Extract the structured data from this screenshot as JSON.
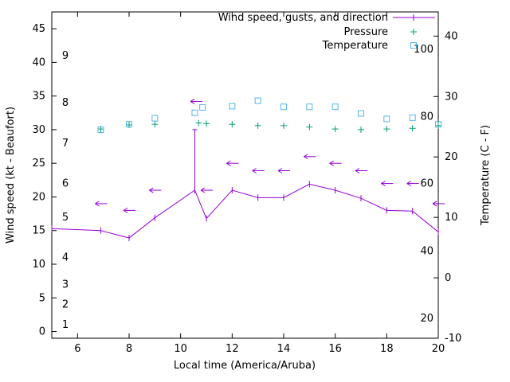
{
  "chart_data": {
    "type": "line",
    "title": "",
    "xlabel": "Local time (America/Aruba)",
    "ylabel": "Wind speed (kt - Beaufort)",
    "y2label": "Temperature (C - F)",
    "xlim": [
      5,
      20
    ],
    "ylim": [
      -1,
      47.5
    ],
    "y2lim": [
      -10,
      44
    ],
    "xticks": [
      6,
      8,
      10,
      12,
      14,
      16,
      18,
      20
    ],
    "yticks": [
      0,
      5,
      10,
      15,
      20,
      25,
      30,
      35,
      40,
      45
    ],
    "y2ticks": [
      -10,
      0,
      10,
      20,
      30,
      40
    ],
    "beaufort_labels": [
      {
        "label": "1",
        "kt": 1
      },
      {
        "label": "2",
        "kt": 4
      },
      {
        "label": "3",
        "kt": 7
      },
      {
        "label": "4",
        "kt": 11
      },
      {
        "label": "5",
        "kt": 17
      },
      {
        "label": "6",
        "kt": 22
      },
      {
        "label": "7",
        "kt": 28
      },
      {
        "label": "8",
        "kt": 34
      },
      {
        "label": "9",
        "kt": 41
      }
    ],
    "fahrenheit_labels": [
      {
        "label": "20",
        "c": -6.7
      },
      {
        "label": "40",
        "c": 4.4
      },
      {
        "label": "60",
        "c": 15.6
      },
      {
        "label": "80",
        "c": 26.7
      },
      {
        "label": "100",
        "c": 37.8
      }
    ],
    "legend": [
      {
        "label": "Wind speed, gusts, and direction",
        "style": "line-vbar",
        "color": "#9400d3"
      },
      {
        "label": "Pressure",
        "style": "plus",
        "color": "#009e73"
      },
      {
        "label": "Temperature",
        "style": "square",
        "color": "#56b4e9"
      }
    ],
    "series": [
      {
        "name": "wind-speed",
        "type": "line-vbar",
        "axis": "y1",
        "color": "#9400d3",
        "x": [
          5.0,
          6.9,
          8.0,
          9.0,
          10.55,
          11.0,
          12.0,
          13.0,
          14.0,
          15.0,
          16.0,
          17.0,
          18.0,
          19.0,
          20.0
        ],
        "values": [
          15.3,
          15.0,
          13.9,
          16.9,
          21.0,
          16.8,
          21.0,
          19.9,
          19.9,
          21.9,
          21.0,
          19.8,
          18.0,
          17.9,
          14.8
        ]
      },
      {
        "name": "wind-gust-bar",
        "type": "gust-bar",
        "axis": "y1",
        "color": "#9400d3",
        "x": 10.55,
        "from": 21.0,
        "to": 30.0
      },
      {
        "name": "wind-direction-arrows",
        "type": "arrow-left",
        "axis": "y1",
        "color": "#9400d3",
        "x": [
          6.9,
          8.0,
          9.0,
          10.6,
          11.0,
          12.0,
          13.0,
          14.0,
          15.0,
          16.0,
          17.0,
          18.0,
          19.0,
          20.0
        ],
        "values": [
          19.0,
          18.0,
          21.0,
          34.2,
          21.0,
          25.0,
          23.9,
          23.9,
          26.0,
          25.0,
          23.9,
          22.0,
          22.0,
          19.0
        ]
      },
      {
        "name": "pressure",
        "type": "plus",
        "axis": "y1",
        "color": "#009e73",
        "x": [
          6.9,
          8.0,
          9.0,
          10.7,
          11.0,
          12.0,
          13.0,
          14.0,
          15.0,
          16.0,
          17.0,
          18.0,
          19.0,
          20.0
        ],
        "values": [
          30.1,
          30.7,
          30.8,
          31.0,
          30.9,
          30.8,
          30.6,
          30.6,
          30.4,
          30.1,
          30.0,
          30.1,
          30.2,
          30.6
        ]
      },
      {
        "name": "temperature",
        "type": "square",
        "axis": "y2",
        "color": "#56b4e9",
        "x": [
          6.9,
          8.0,
          9.0,
          10.55,
          10.85,
          12.0,
          13.0,
          14.0,
          15.0,
          16.0,
          17.0,
          18.0,
          19.0,
          20.0
        ],
        "values": [
          24.5,
          25.4,
          26.4,
          27.3,
          28.2,
          28.4,
          29.3,
          28.3,
          28.3,
          28.3,
          27.2,
          26.3,
          26.5,
          25.4
        ]
      }
    ],
    "axis_color": "#000000",
    "background": "#ffffff",
    "grid": false,
    "legend_position": "top-right-inside"
  }
}
